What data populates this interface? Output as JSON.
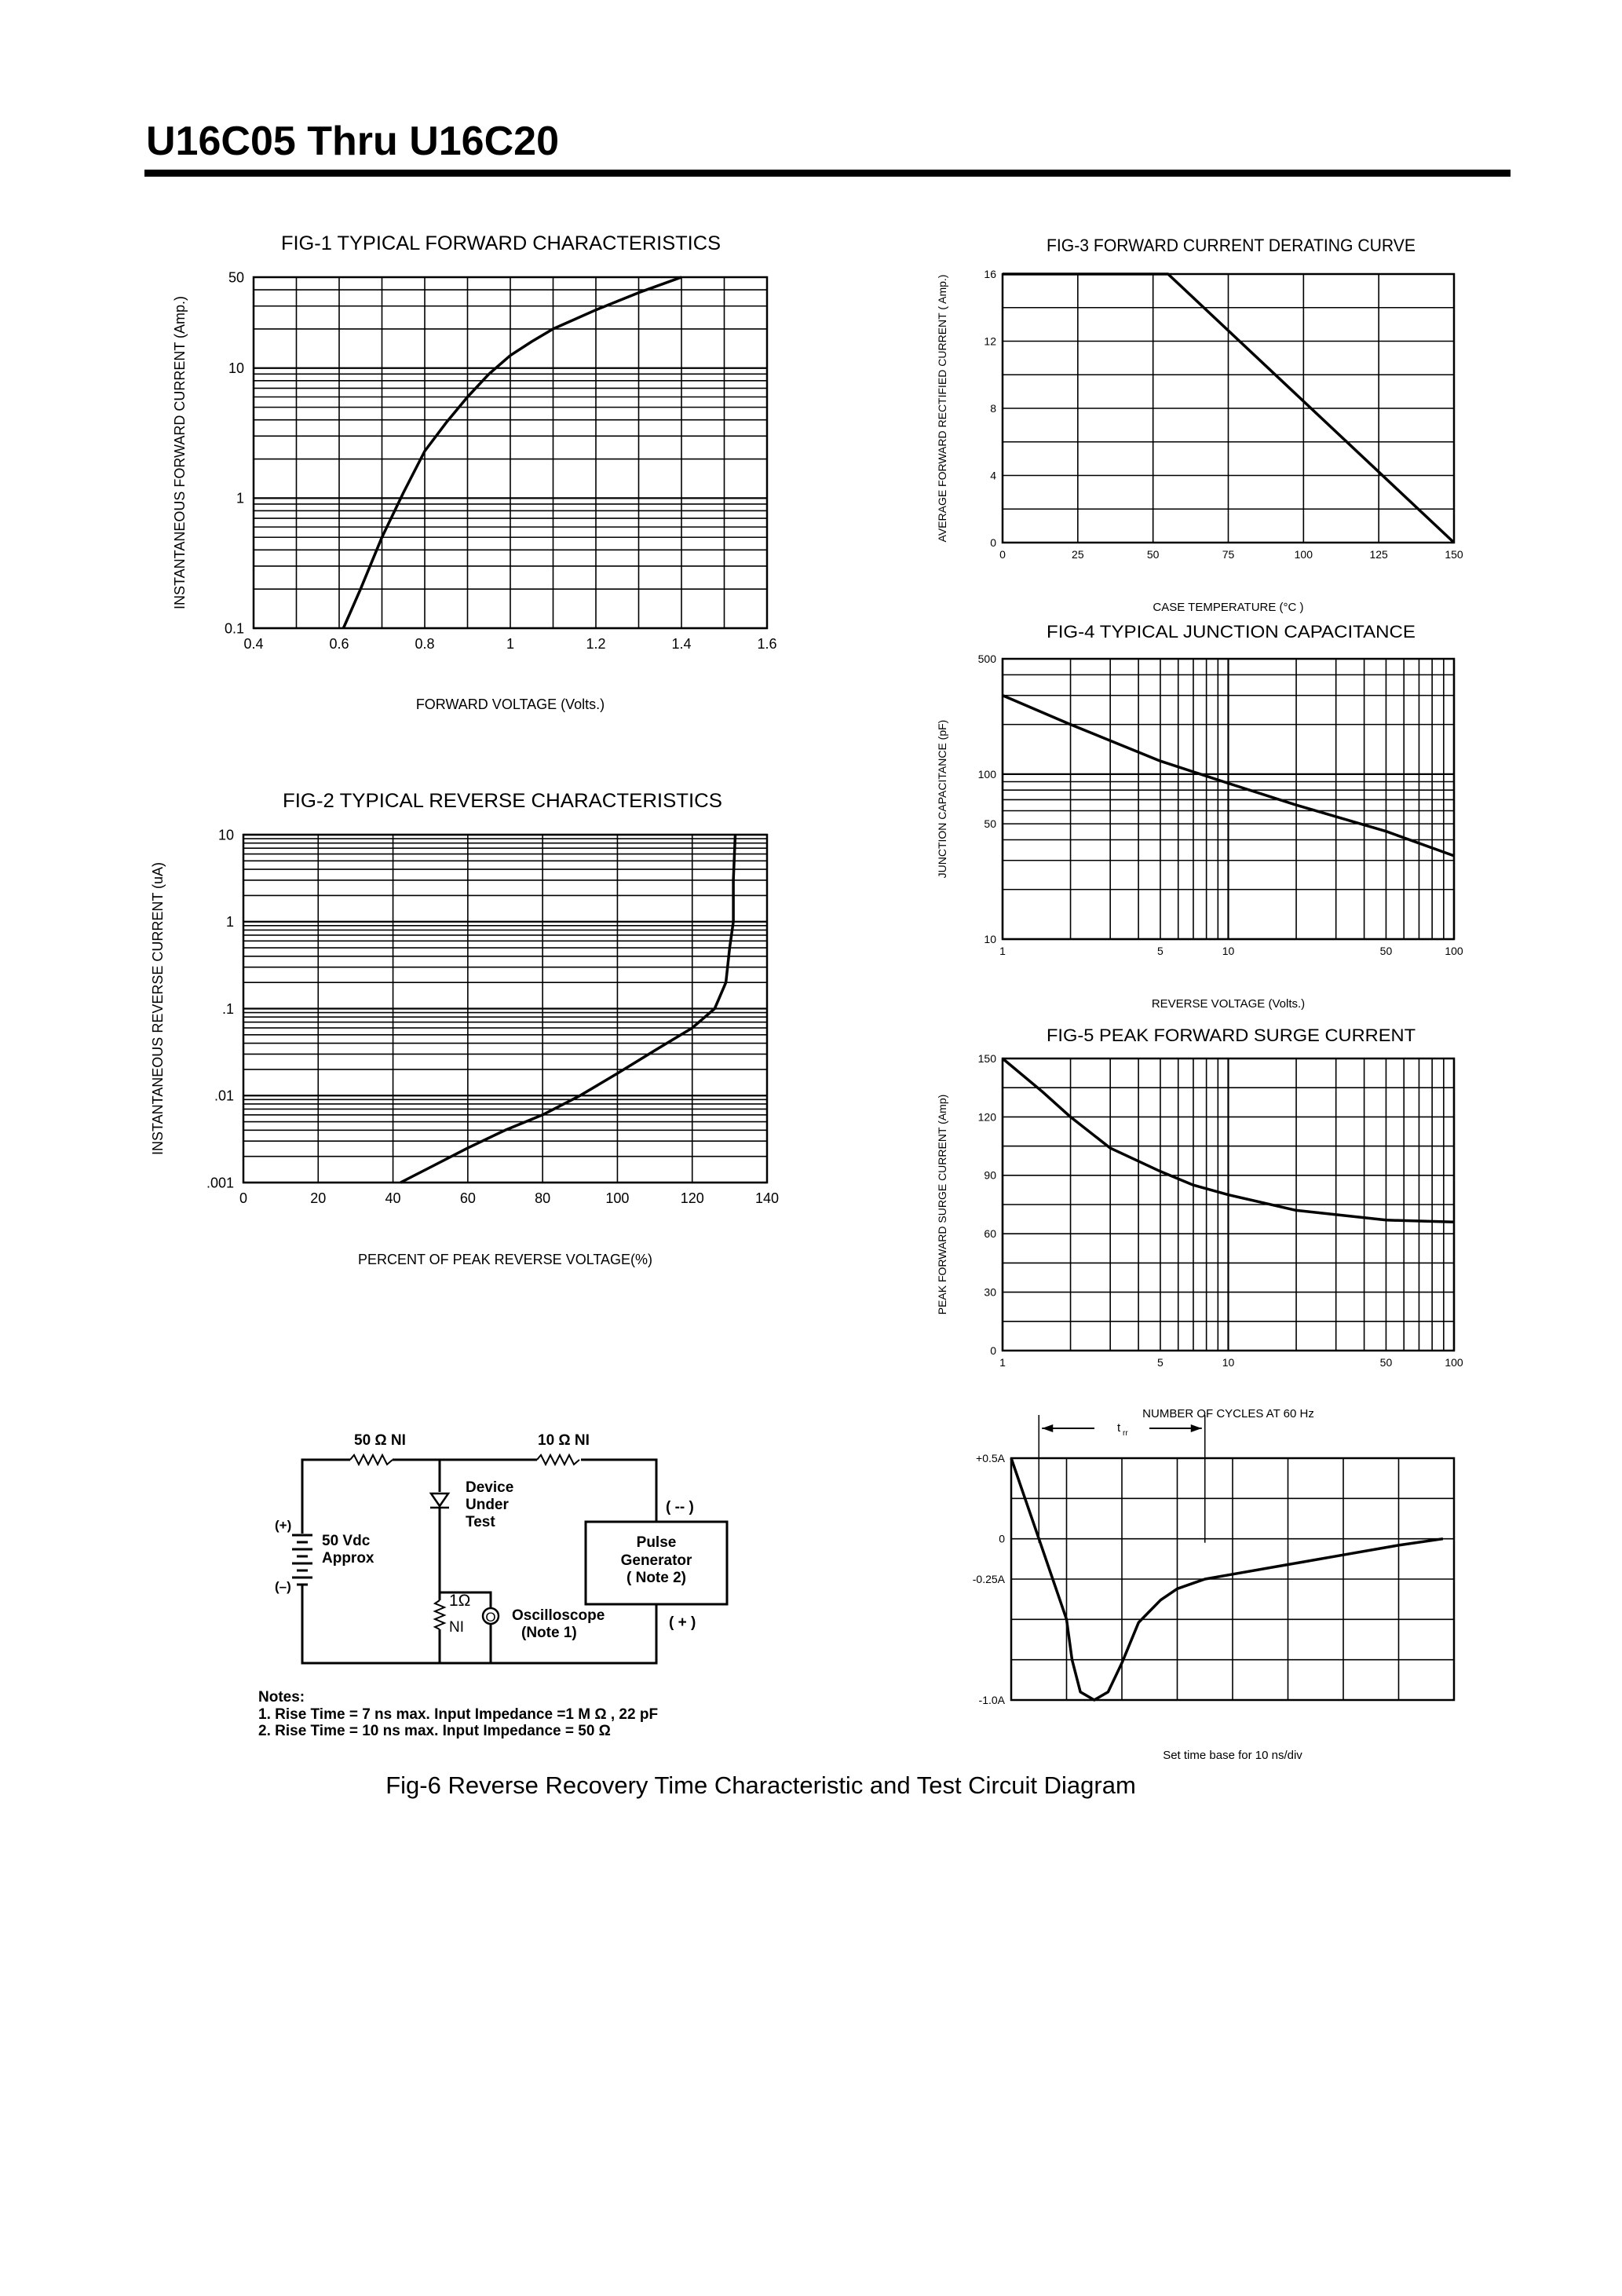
{
  "document": {
    "title": "U16C05 Thru U16C20",
    "fig6_caption": "Fig-6 Reverse Recovery Time Characteristic and Test Circuit Diagram"
  },
  "circuit": {
    "r1_label": "50 Ω  NI",
    "r2_label": "10 Ω  NI",
    "dut_lines": [
      "Device",
      "Under",
      "Test"
    ],
    "battery_plus": "(+)",
    "battery_minus": "(–)",
    "battery_lines": [
      "50 Vdc",
      "Approx"
    ],
    "pulse_lines": [
      "Pulse",
      "Generator",
      "( Note 2)"
    ],
    "pulse_minus": "( -- )",
    "pulse_plus": "( + )",
    "r3_label": "1Ω",
    "r3_sub": "NI",
    "scope_symbol": "O",
    "scope_lines": [
      "Oscilloscope",
      "(Note 1)"
    ],
    "notes_title": "Notes:",
    "notes": [
      "1. Rise Time = 7 ns max. Input Impedance =1 M Ω , 22 pF",
      "2. Rise Time = 10 ns max. Input Impedance = 50 Ω"
    ]
  },
  "chart_data": [
    {
      "id": "fig1",
      "type": "line",
      "title": "FIG-1 TYPICAL FORWARD CHARACTERISTICS",
      "xlabel": "FORWARD VOLTAGE (Volts.)",
      "ylabel": "INSTANTANEOUS FORWARD CURRENT (Amp.)",
      "xlim": [
        0.4,
        1.6
      ],
      "ylim": [
        0.1,
        50
      ],
      "yscale": "log",
      "grid": true,
      "x_ticks": [
        "0.4",
        "0.6",
        "0.8",
        "1",
        "1.2",
        "1.4",
        "1.6"
      ],
      "x_tick_values": [
        0.4,
        0.6,
        0.8,
        1,
        1.2,
        1.4,
        1.6
      ],
      "y_ticks": [
        "0.1",
        "1",
        "10",
        "50"
      ],
      "y_tick_values": [
        0.1,
        1,
        10,
        50
      ],
      "x": [
        0.61,
        0.65,
        0.7,
        0.75,
        0.8,
        0.85,
        0.9,
        0.95,
        1.0,
        1.05,
        1.1,
        1.2,
        1.3,
        1.4
      ],
      "y": [
        0.1,
        0.2,
        0.5,
        1.1,
        2.3,
        3.8,
        6,
        9,
        12.5,
        16,
        20,
        28,
        38,
        50
      ]
    },
    {
      "id": "fig2",
      "type": "line",
      "title": "FIG-2 TYPICAL REVERSE CHARACTERISTICS",
      "xlabel": "PERCENT OF PEAK REVERSE VOLTAGE(%)",
      "ylabel": "INSTANTANEOUS REVERSE CURRENT (uA)",
      "xlim": [
        0,
        140
      ],
      "ylim": [
        0.001,
        10
      ],
      "yscale": "log",
      "grid": true,
      "x_ticks": [
        "0",
        "20",
        "40",
        "60",
        "80",
        "100",
        "120",
        "140"
      ],
      "x_tick_values": [
        0,
        20,
        40,
        60,
        80,
        100,
        120,
        140
      ],
      "y_ticks": [
        ".001",
        ".01",
        ".1",
        "1",
        "10"
      ],
      "y_tick_values": [
        0.001,
        0.01,
        0.1,
        1,
        10
      ],
      "x": [
        42,
        50,
        60,
        70,
        80,
        90,
        100,
        110,
        120,
        126,
        129,
        130,
        131,
        131,
        131.5
      ],
      "y": [
        0.001,
        0.0015,
        0.0025,
        0.004,
        0.006,
        0.01,
        0.018,
        0.033,
        0.06,
        0.1,
        0.2,
        0.5,
        1,
        3,
        10
      ]
    },
    {
      "id": "fig3",
      "type": "line",
      "title": "FIG-3 FORWARD CURRENT DERATING CURVE",
      "xlabel": "CASE TEMPERATURE (°C )",
      "ylabel": "AVERAGE FORWARD RECTIFIED CURRENT ( Amp.)",
      "xlim": [
        0,
        150
      ],
      "ylim": [
        0,
        16
      ],
      "grid": true,
      "x_ticks": [
        "0",
        "25",
        "50",
        "75",
        "100",
        "125",
        "150"
      ],
      "x_tick_values": [
        0,
        25,
        50,
        75,
        100,
        125,
        150
      ],
      "y_ticks": [
        "0",
        "4",
        "8",
        "12",
        "16"
      ],
      "y_tick_values": [
        0,
        4,
        8,
        12,
        16
      ],
      "x": [
        0,
        55,
        150
      ],
      "y": [
        16,
        16,
        0
      ]
    },
    {
      "id": "fig4",
      "type": "line",
      "title": "FIG-4 TYPICAL JUNCTION CAPACITANCE",
      "xlabel": "REVERSE VOLTAGE (Volts.)",
      "ylabel": "JUNCTION CAPACITANCE (pF)",
      "xlim": [
        1,
        100
      ],
      "ylim": [
        10,
        500
      ],
      "xscale": "log",
      "yscale": "log",
      "grid": true,
      "x_ticks": [
        "1",
        "5",
        "10",
        "50",
        "100"
      ],
      "x_tick_values": [
        1,
        5,
        10,
        50,
        100
      ],
      "y_ticks": [
        "10",
        "50",
        "100",
        "500"
      ],
      "y_tick_values": [
        10,
        50,
        100,
        500
      ],
      "x": [
        1,
        2,
        5,
        10,
        20,
        50,
        100
      ],
      "y": [
        300,
        200,
        120,
        88,
        65,
        45,
        32
      ]
    },
    {
      "id": "fig5",
      "type": "line",
      "title": "FIG-5 PEAK FORWARD SURGE CURRENT",
      "xlabel": "NUMBER OF CYCLES AT 60 Hz",
      "ylabel": "PEAK FORWARD SURGE CURRENT (Amp)",
      "xlim": [
        1,
        100
      ],
      "ylim": [
        0,
        150
      ],
      "xscale": "log",
      "grid": true,
      "x_ticks": [
        "1",
        "5",
        "10",
        "50",
        "100"
      ],
      "x_tick_values": [
        1,
        5,
        10,
        50,
        100
      ],
      "y_ticks": [
        "0",
        "30",
        "60",
        "90",
        "120",
        "150"
      ],
      "y_tick_values": [
        0,
        30,
        60,
        90,
        120,
        150
      ],
      "x": [
        1,
        1.5,
        2,
        3,
        5,
        7,
        10,
        20,
        50,
        100
      ],
      "y": [
        150,
        133,
        120,
        104,
        92,
        85,
        80,
        72,
        67,
        66
      ]
    },
    {
      "id": "fig6",
      "type": "line",
      "title": "",
      "xlabel": "Set time base for 10  ns/div",
      "ylabel": "",
      "xlim": [
        0,
        8
      ],
      "ylim": [
        -1.0,
        0.5
      ],
      "grid": true,
      "x_ticks": [],
      "x_tick_values": [],
      "y_ticks": [
        "+0.5A",
        "0",
        "-0.25A",
        "-1.0A"
      ],
      "y_tick_values": [
        0.5,
        0,
        -0.25,
        -1.0
      ],
      "trr_label": "t",
      "trr_sub": "rr",
      "trr_markers": [
        0.5,
        3.5
      ],
      "x": [
        0,
        0.25,
        0.5,
        0.75,
        1,
        1.1,
        1.25,
        1.5,
        1.75,
        2,
        2.3,
        2.7,
        3,
        3.5,
        4,
        5,
        6,
        7,
        7.8
      ],
      "y": [
        0.5,
        0.25,
        0,
        -0.25,
        -0.5,
        -0.75,
        -0.95,
        -1.0,
        -0.95,
        -0.77,
        -0.52,
        -0.38,
        -0.31,
        -0.25,
        -0.22,
        -0.16,
        -0.1,
        -0.04,
        0
      ]
    }
  ]
}
